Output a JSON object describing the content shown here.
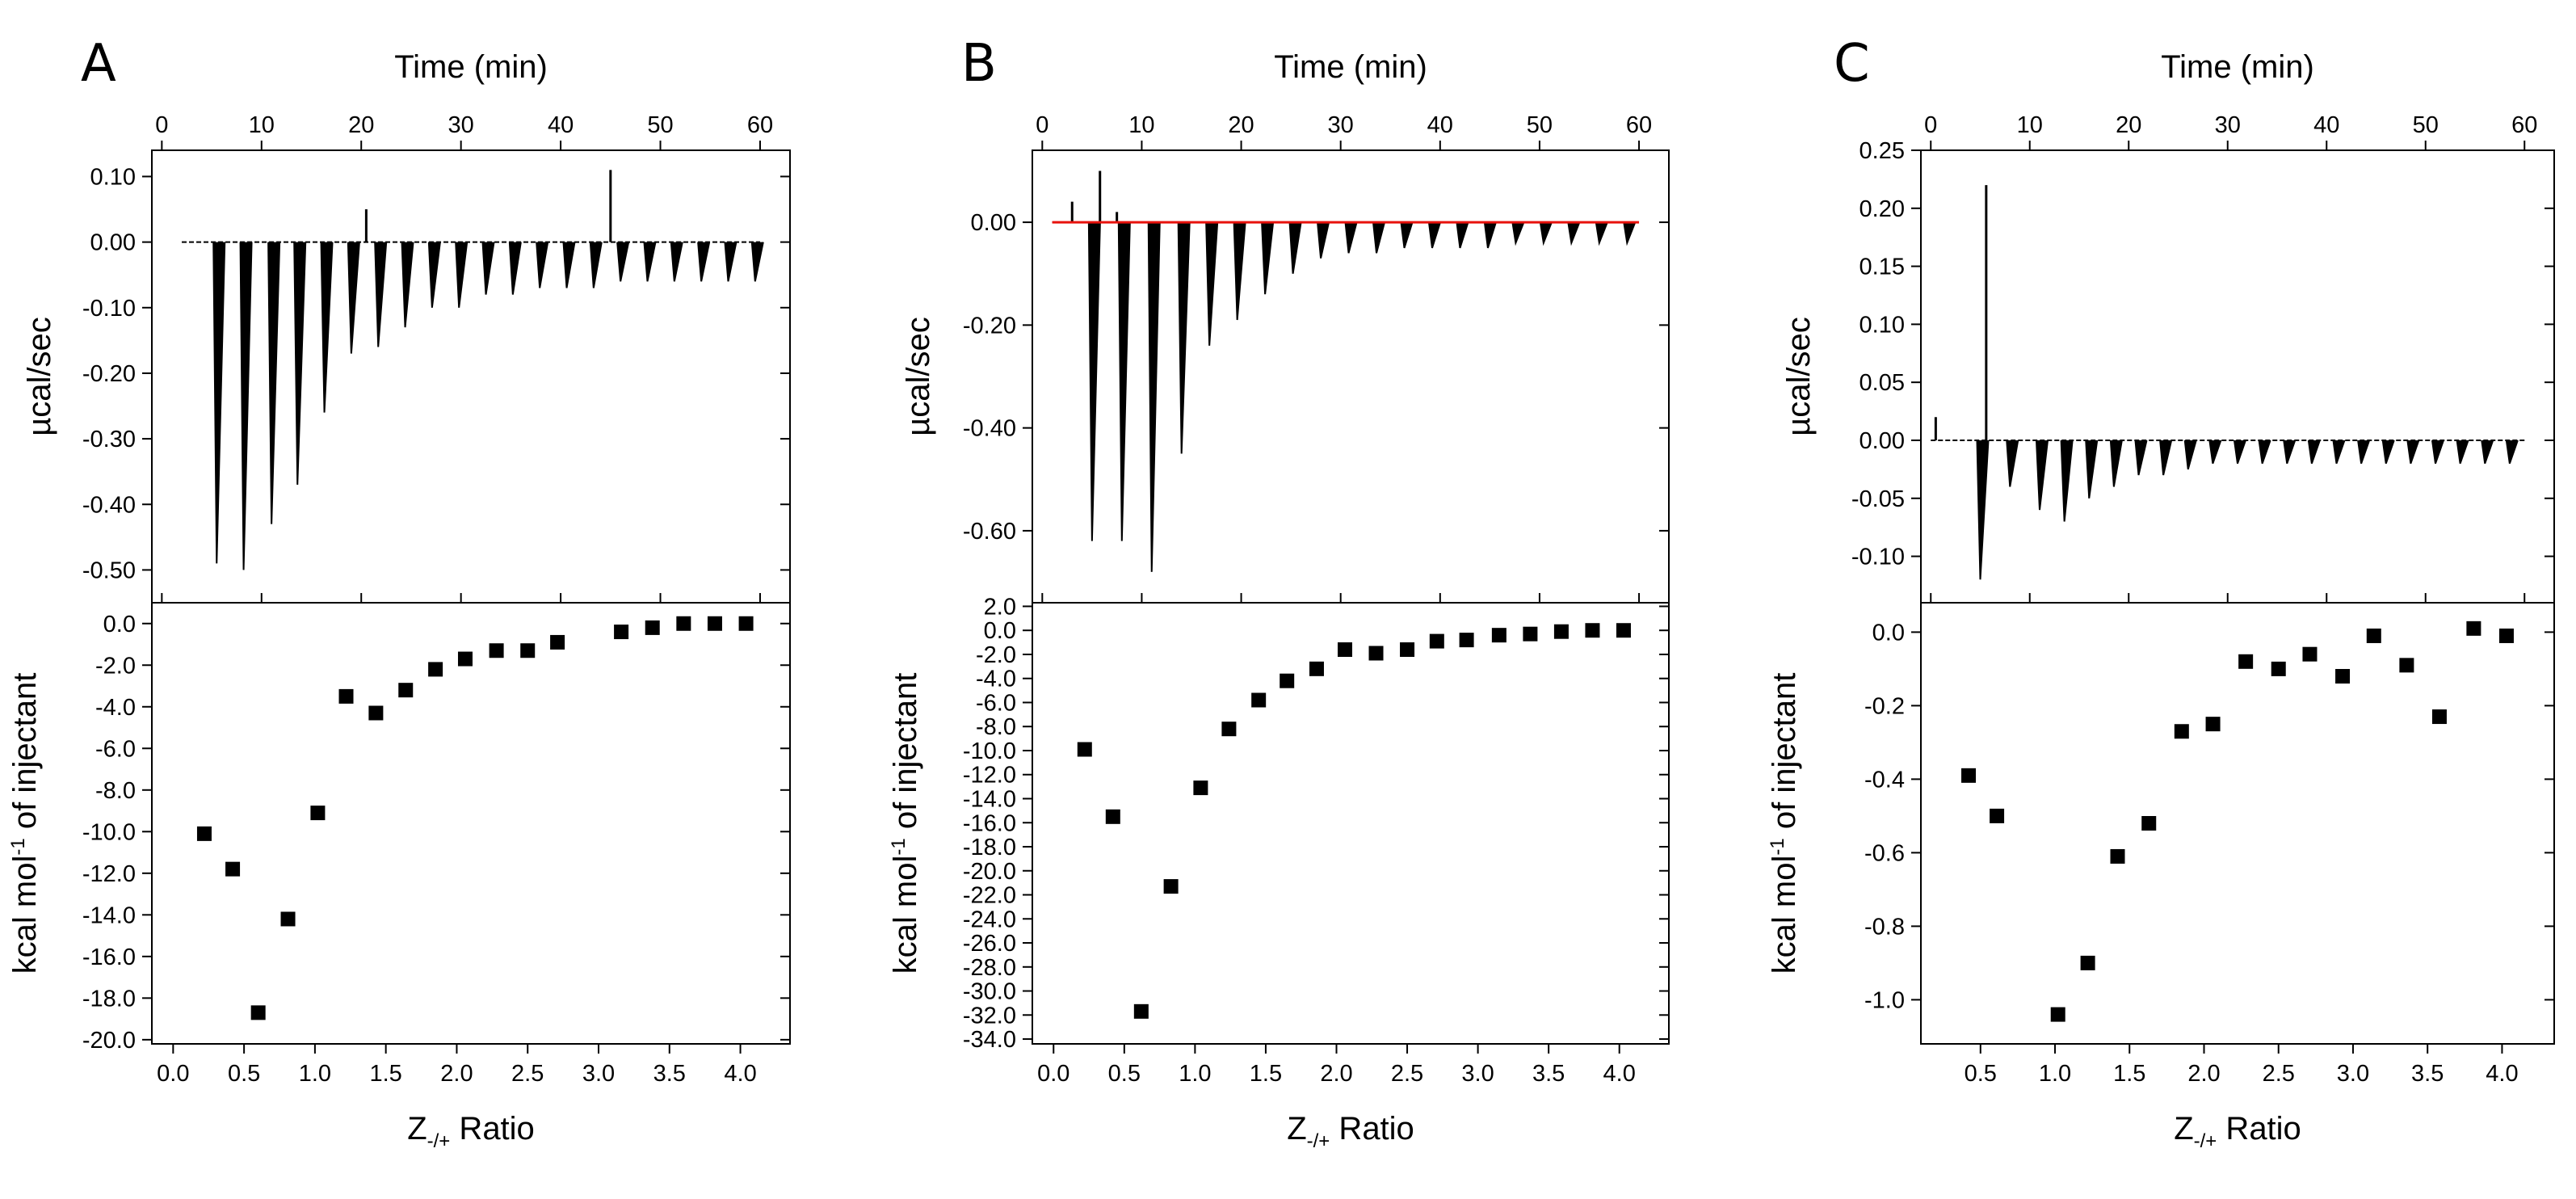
{
  "figure": {
    "panels": [
      "A",
      "B",
      "C"
    ],
    "time_axis_title": "Time (min)",
    "ratio_axis_title_main": "Z",
    "ratio_axis_title_sub": "-/+",
    "ratio_axis_title_tail": " Ratio",
    "raw_ylabel": "µcal/sec",
    "int_ylabel_main": "kcal mol",
    "int_ylabel_sup": "-1",
    "int_ylabel_tail": " of injectant"
  },
  "chart_data": [
    {
      "type": "scatter",
      "panel": "A",
      "raw_thermogram": {
        "xlabel": "Time (min)",
        "ylabel": "µcal/sec",
        "xlim": [
          -1,
          63
        ],
        "ylim": [
          -0.55,
          0.14
        ],
        "xticks": [
          0,
          10,
          20,
          30,
          40,
          50,
          60
        ],
        "xtick_labels": [
          "0",
          "10",
          "20",
          "30",
          "40",
          "50",
          "60"
        ],
        "yticks": [
          0.1,
          0.0,
          -0.1,
          -0.2,
          -0.3,
          -0.4,
          -0.5
        ],
        "ytick_labels": [
          "0.10",
          "0.00",
          "-0.10",
          "-0.20",
          "-0.30",
          "-0.40",
          "-0.50"
        ],
        "baseline": 0.0,
        "x_start": 2,
        "x_end": 60,
        "injection_times": [
          5.5,
          8.2,
          11.0,
          13.6,
          16.3,
          19.0,
          21.7,
          24.4,
          27.1,
          29.8,
          32.5,
          35.2,
          37.9,
          40.6,
          43.3,
          46.0,
          48.7,
          51.4,
          54.1,
          56.8,
          59.5
        ],
        "injection_peaks": [
          -0.49,
          -0.5,
          -0.43,
          -0.37,
          -0.26,
          -0.17,
          -0.16,
          -0.13,
          -0.1,
          -0.1,
          -0.08,
          -0.08,
          -0.07,
          -0.07,
          -0.07,
          -0.06,
          -0.06,
          -0.06,
          -0.06,
          -0.06,
          -0.06
        ],
        "positive_spikes": [
          [
            20.5,
            0.05
          ],
          [
            45.0,
            0.11
          ]
        ]
      },
      "integrated": {
        "xlabel": "Z-/+ Ratio",
        "ylabel": "kcal mol-1 of injectant",
        "xlim": [
          -0.15,
          4.35
        ],
        "ylim": [
          -20.2,
          1.0
        ],
        "xticks": [
          0.0,
          0.5,
          1.0,
          1.5,
          2.0,
          2.5,
          3.0,
          3.5,
          4.0
        ],
        "xtick_labels": [
          "0.0",
          "0.5",
          "1.0",
          "1.5",
          "2.0",
          "2.5",
          "3.0",
          "3.5",
          "4.0"
        ],
        "yticks": [
          0.0,
          -2.0,
          -4.0,
          -6.0,
          -8.0,
          -10.0,
          -12.0,
          -14.0,
          -16.0,
          -18.0,
          -20.0
        ],
        "ytick_labels": [
          "0.0",
          "-2.0",
          "-4.0",
          "-6.0",
          "-8.0",
          "-10.0",
          "-12.0",
          "-14.0",
          "-16.0",
          "-18.0",
          "-20.0"
        ],
        "x": [
          0.22,
          0.42,
          0.6,
          0.81,
          1.02,
          1.22,
          1.43,
          1.64,
          1.85,
          2.06,
          2.28,
          2.5,
          2.71,
          3.16,
          3.38,
          3.6,
          3.82,
          4.04
        ],
        "y": [
          -10.1,
          -11.8,
          -18.7,
          -14.2,
          -9.1,
          -3.5,
          -4.3,
          -3.2,
          -2.2,
          -1.7,
          -1.3,
          -1.3,
          -0.9,
          -0.4,
          -0.2,
          0.0,
          0.0,
          0.0
        ]
      }
    },
    {
      "type": "scatter",
      "panel": "B",
      "raw_thermogram": {
        "xlabel": "Time (min)",
        "ylabel": "µcal/sec",
        "xlim": [
          -1,
          63
        ],
        "ylim": [
          -0.74,
          0.14
        ],
        "xticks": [
          0,
          10,
          20,
          30,
          40,
          50,
          60
        ],
        "xtick_labels": [
          "0",
          "10",
          "20",
          "30",
          "40",
          "50",
          "60"
        ],
        "yticks": [
          0.0,
          -0.2,
          -0.4,
          -0.6
        ],
        "ytick_labels": [
          "0.00",
          "-0.20",
          "-0.40",
          "-0.60"
        ],
        "baseline": 0.0,
        "baseline_fit_color": "#e8120c",
        "x_start": 1,
        "x_end": 60,
        "injection_times": [
          5.0,
          8.0,
          11.0,
          14.0,
          16.8,
          19.6,
          22.4,
          25.2,
          28.0,
          30.8,
          33.6,
          36.4,
          39.2,
          42.0,
          44.8,
          47.6,
          50.4,
          53.2,
          56.0,
          58.8
        ],
        "injection_peaks": [
          -0.62,
          -0.62,
          -0.68,
          -0.45,
          -0.24,
          -0.19,
          -0.14,
          -0.1,
          -0.07,
          -0.06,
          -0.06,
          -0.05,
          -0.05,
          -0.05,
          -0.05,
          -0.04,
          -0.04,
          -0.04,
          -0.04,
          -0.04
        ],
        "positive_spikes": [
          [
            3.0,
            0.04
          ],
          [
            5.8,
            0.1
          ],
          [
            7.5,
            0.02
          ]
        ]
      },
      "integrated": {
        "xlabel": "Z-/+ Ratio",
        "ylabel": "kcal mol-1 of injectant",
        "xlim": [
          -0.15,
          4.35
        ],
        "ylim": [
          -34.4,
          2.3
        ],
        "xticks": [
          0.0,
          0.5,
          1.0,
          1.5,
          2.0,
          2.5,
          3.0,
          3.5,
          4.0
        ],
        "xtick_labels": [
          "0.0",
          "0.5",
          "1.0",
          "1.5",
          "2.0",
          "2.5",
          "3.0",
          "3.5",
          "4.0"
        ],
        "yticks": [
          2.0,
          0.0,
          -2.0,
          -4.0,
          -6.0,
          -8.0,
          -10.0,
          -12.0,
          -14.0,
          -16.0,
          -18.0,
          -20.0,
          -22.0,
          -24.0,
          -26.0,
          -28.0,
          -30.0,
          -32.0,
          -34.0
        ],
        "ytick_labels": [
          "2.0",
          "0.0",
          "-2.0",
          "-4.0",
          "-6.0",
          "-8.0",
          "-10.0",
          "-12.0",
          "-14.0",
          "-16.0",
          "-18.0",
          "-20.0",
          "-22.0",
          "-24.0",
          "-26.0",
          "-28.0",
          "-30.0",
          "-32.0",
          "-34.0"
        ],
        "x": [
          0.22,
          0.42,
          0.62,
          0.83,
          1.04,
          1.24,
          1.45,
          1.65,
          1.86,
          2.06,
          2.28,
          2.5,
          2.71,
          2.92,
          3.15,
          3.37,
          3.59,
          3.81,
          4.03
        ],
        "y": [
          -9.9,
          -15.5,
          -31.7,
          -21.3,
          -13.1,
          -8.2,
          -5.8,
          -4.2,
          -3.2,
          -1.6,
          -1.9,
          -1.6,
          -0.9,
          -0.8,
          -0.4,
          -0.3,
          -0.1,
          0.0,
          0.0
        ]
      }
    },
    {
      "type": "scatter",
      "panel": "C",
      "raw_thermogram": {
        "xlabel": "Time (min)",
        "ylabel": "µcal/sec",
        "xlim": [
          -1,
          63
        ],
        "ylim": [
          -0.14,
          0.25
        ],
        "xticks": [
          0,
          10,
          20,
          30,
          40,
          50,
          60
        ],
        "xtick_labels": [
          "0",
          "10",
          "20",
          "30",
          "40",
          "50",
          "60"
        ],
        "yticks": [
          0.25,
          0.2,
          0.15,
          0.1,
          0.05,
          0.0,
          -0.05,
          -0.1
        ],
        "ytick_labels": [
          "0.25",
          "0.20",
          "0.15",
          "0.10",
          "0.05",
          "0.00",
          "-0.05",
          "-0.10"
        ],
        "baseline": 0.0,
        "x_start": 0,
        "x_end": 60,
        "injection_times": [
          5.0,
          8.0,
          11.0,
          13.5,
          16.0,
          18.5,
          21.0,
          23.5,
          26.0,
          28.5,
          31.0,
          33.5,
          36.0,
          38.5,
          41.0,
          43.5,
          46.0,
          48.5,
          51.0,
          53.5,
          56.0,
          58.5
        ],
        "injection_peaks": [
          -0.12,
          -0.04,
          -0.06,
          -0.07,
          -0.05,
          -0.04,
          -0.03,
          -0.03,
          -0.025,
          -0.02,
          -0.02,
          -0.02,
          -0.02,
          -0.02,
          -0.02,
          -0.02,
          -0.02,
          -0.02,
          -0.02,
          -0.02,
          -0.02,
          -0.02
        ],
        "positive_spikes": [
          [
            0.5,
            0.02
          ],
          [
            5.6,
            0.22
          ]
        ]
      },
      "integrated": {
        "xlabel": "Z-/+ Ratio",
        "ylabel": "kcal mol-1 of injectant",
        "xlim": [
          0.1,
          4.35
        ],
        "ylim": [
          -1.12,
          0.08
        ],
        "xticks": [
          0.5,
          1.0,
          1.5,
          2.0,
          2.5,
          3.0,
          3.5,
          4.0
        ],
        "xtick_labels": [
          "0.5",
          "1.0",
          "1.5",
          "2.0",
          "2.5",
          "3.0",
          "3.5",
          "4.0"
        ],
        "yticks": [
          0.0,
          -0.2,
          -0.4,
          -0.6,
          -0.8,
          -1.0
        ],
        "ytick_labels": [
          "0.0",
          "-0.2",
          "-0.4",
          "-0.6",
          "-0.8",
          "-1.0"
        ],
        "x": [
          0.42,
          0.61,
          1.02,
          1.22,
          1.42,
          1.63,
          1.85,
          2.06,
          2.28,
          2.5,
          2.71,
          2.93,
          3.14,
          3.36,
          3.58,
          3.81,
          4.03
        ],
        "y": [
          -0.39,
          -0.5,
          -1.04,
          -0.9,
          -0.61,
          -0.52,
          -0.27,
          -0.25,
          -0.08,
          -0.1,
          -0.06,
          -0.12,
          -0.01,
          -0.09,
          -0.23,
          0.01,
          -0.01
        ]
      }
    }
  ]
}
